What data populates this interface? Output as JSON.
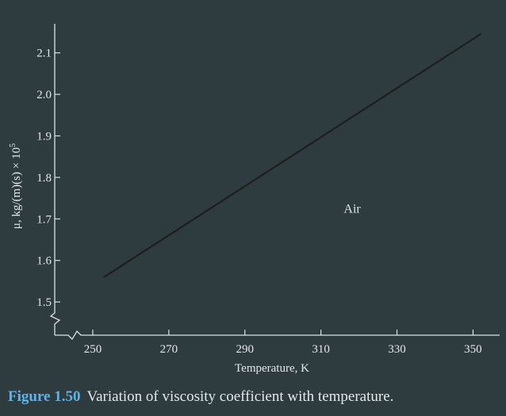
{
  "chart_data": {
    "type": "line",
    "title": "",
    "xlabel": "Temperature, K",
    "ylabel_main": "μ, kg/(m)(s) × 10",
    "ylabel_sup": "5",
    "xlim": [
      240,
      357
    ],
    "ylim": [
      1.42,
      2.17
    ],
    "xticks": [
      250,
      270,
      290,
      310,
      330,
      350
    ],
    "yticks": [
      1.5,
      1.6,
      1.7,
      1.8,
      1.9,
      2.0,
      2.1
    ],
    "xtick_labels": [
      "250",
      "270",
      "290",
      "310",
      "330",
      "350"
    ],
    "ytick_labels": [
      "1.5",
      "1.6",
      "1.7",
      "1.8",
      "1.9",
      "2.0",
      "2.1"
    ],
    "axis_break": true,
    "grid": false,
    "series": [
      {
        "color": "#1e1e1e",
        "x": [
          253,
          352
        ],
        "y": [
          1.56,
          2.145
        ]
      }
    ],
    "annotations": [
      {
        "text": "Air",
        "x": 316,
        "y": 1.715
      }
    ]
  },
  "caption": {
    "label": "Figure 1.50",
    "text": "Variation of viscosity coefficient with temperature."
  }
}
